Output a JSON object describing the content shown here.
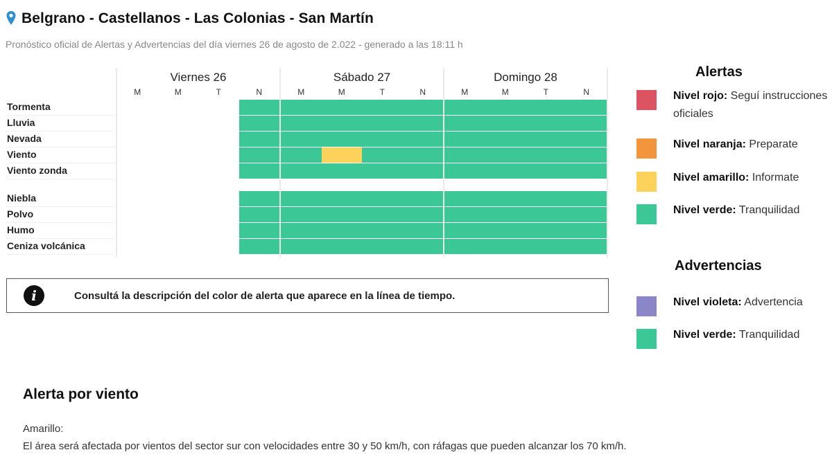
{
  "header": {
    "title": "Belgrano - Castellanos - Las Colonias - San Martín",
    "subtitle": "Pronóstico oficial de Alertas y Advertencias del día viernes 26 de agosto de 2.022 - generado a las 18:11 h",
    "pin_icon": "location-pin-icon"
  },
  "timeline": {
    "days": [
      {
        "label": "Viernes 26",
        "slots": [
          "M",
          "M",
          "T",
          "N"
        ]
      },
      {
        "label": "Sábado 27",
        "slots": [
          "M",
          "M",
          "T",
          "N"
        ]
      },
      {
        "label": "Domingo 28",
        "slots": [
          "M",
          "M",
          "T",
          "N"
        ]
      }
    ],
    "alert_rows": [
      {
        "label": "Tormenta",
        "levels": [
          "none",
          "none",
          "none",
          "verde",
          "verde",
          "verde",
          "verde",
          "verde",
          "verde",
          "verde",
          "verde",
          "verde"
        ]
      },
      {
        "label": "Lluvia",
        "levels": [
          "none",
          "none",
          "none",
          "verde",
          "verde",
          "verde",
          "verde",
          "verde",
          "verde",
          "verde",
          "verde",
          "verde"
        ]
      },
      {
        "label": "Nevada",
        "levels": [
          "none",
          "none",
          "none",
          "verde",
          "verde",
          "verde",
          "verde",
          "verde",
          "verde",
          "verde",
          "verde",
          "verde"
        ]
      },
      {
        "label": "Viento",
        "levels": [
          "none",
          "none",
          "none",
          "verde",
          "verde",
          "amarillo",
          "verde",
          "verde",
          "verde",
          "verde",
          "verde",
          "verde"
        ]
      },
      {
        "label": "Viento zonda",
        "levels": [
          "none",
          "none",
          "none",
          "verde",
          "verde",
          "verde",
          "verde",
          "verde",
          "verde",
          "verde",
          "verde",
          "verde"
        ]
      }
    ],
    "warning_rows": [
      {
        "label": "Niebla",
        "levels": [
          "none",
          "none",
          "none",
          "verde",
          "verde",
          "verde",
          "verde",
          "verde",
          "verde",
          "verde",
          "verde",
          "verde"
        ]
      },
      {
        "label": "Polvo",
        "levels": [
          "none",
          "none",
          "none",
          "verde",
          "verde",
          "verde",
          "verde",
          "verde",
          "verde",
          "verde",
          "verde",
          "verde"
        ]
      },
      {
        "label": "Humo",
        "levels": [
          "none",
          "none",
          "none",
          "verde",
          "verde",
          "verde",
          "verde",
          "verde",
          "verde",
          "verde",
          "verde",
          "verde"
        ]
      },
      {
        "label": "Ceniza volcánica",
        "levels": [
          "none",
          "none",
          "none",
          "verde",
          "verde",
          "verde",
          "verde",
          "verde",
          "verde",
          "verde",
          "verde",
          "verde"
        ]
      }
    ]
  },
  "colors": {
    "verde": "#3cc896",
    "amarillo": "#fdd25a",
    "naranja": "#f2953c",
    "rojo": "#dc5462",
    "violeta": "#8b86c8"
  },
  "info_box": {
    "icon": "info-icon",
    "text": "Consultá la descripción del color de alerta que aparece en la línea de tiempo."
  },
  "legend": {
    "alertas_title": "Alertas",
    "alertas": [
      {
        "level": "Nivel rojo:",
        "desc": "Seguí instrucciones oficiales",
        "color": "#dc5462"
      },
      {
        "level": "Nivel naranja:",
        "desc": "Preparate",
        "color": "#f2953c"
      },
      {
        "level": "Nivel amarillo:",
        "desc": "Informate",
        "color": "#fdd25a"
      },
      {
        "level": "Nivel verde:",
        "desc": "Tranquilidad",
        "color": "#3cc896"
      }
    ],
    "advertencias_title": "Advertencias",
    "advertencias": [
      {
        "level": "Nivel violeta:",
        "desc": "Advertencia",
        "color": "#8b86c8"
      },
      {
        "level": "Nivel verde:",
        "desc": "Tranquilidad",
        "color": "#3cc896"
      }
    ]
  },
  "alert_section": {
    "title": "Alerta por viento",
    "level": "Amarillo:",
    "description": "El área será afectada por vientos del sector sur con velocidades entre 30 y 50 km/h, con ráfagas que pueden alcanzar los 70 km/h."
  }
}
